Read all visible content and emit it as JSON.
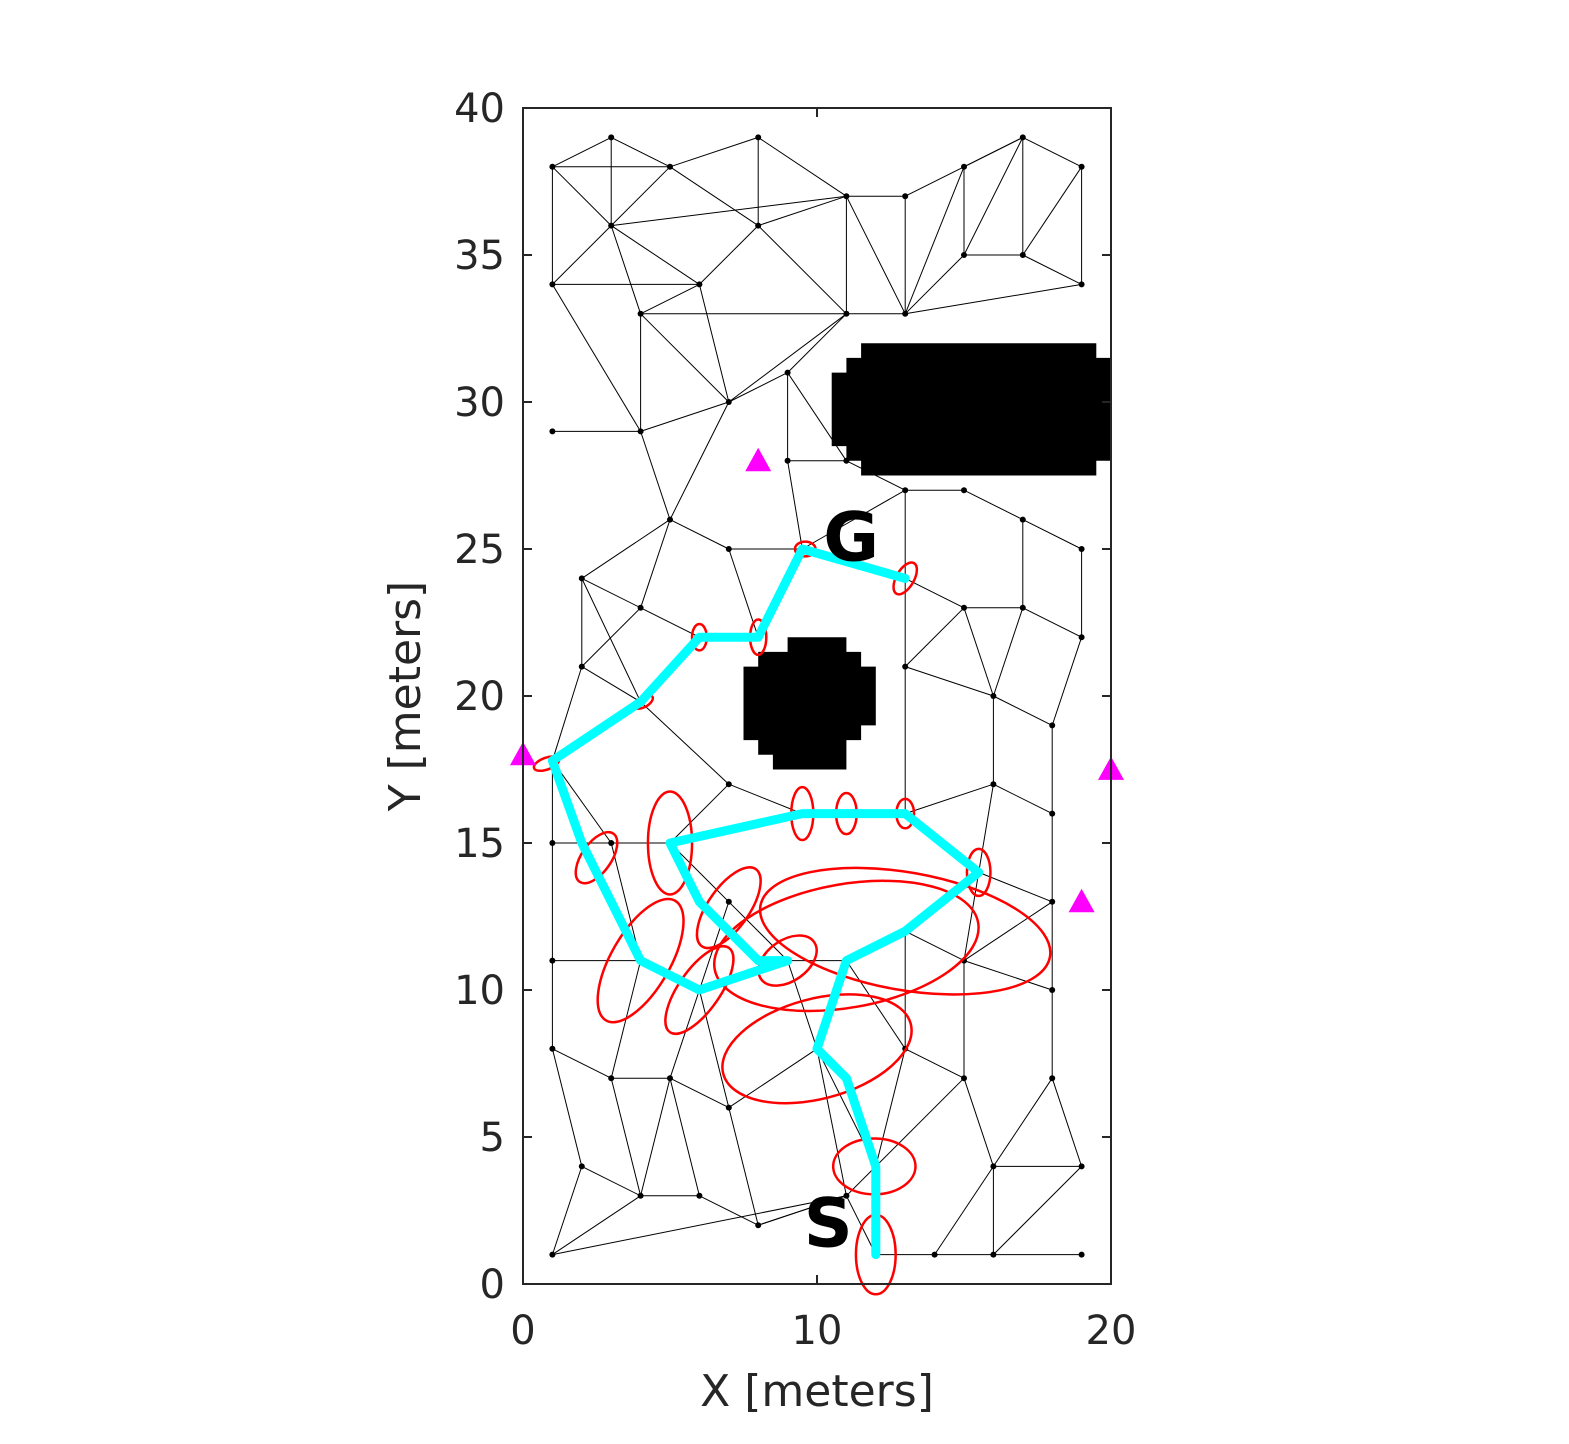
{
  "chart_data": {
    "type": "scatter",
    "title": "",
    "xlabel": "X [meters]",
    "ylabel": "Y [meters]",
    "xlim": [
      0,
      20
    ],
    "ylim": [
      0,
      40
    ],
    "xticks": [
      0,
      10,
      20
    ],
    "yticks": [
      0,
      5,
      10,
      15,
      20,
      25,
      30,
      35,
      40
    ],
    "grid": false,
    "legend": "none",
    "colors": {
      "axis": "#262626",
      "roadmap": "#000000",
      "path": "#00ffff",
      "covariance": "#ff0000",
      "beacon": "#ff00ff",
      "obstacle": "#000000"
    },
    "start_label": "S",
    "goal_label": "G",
    "start": [
      12,
      1
    ],
    "goal": [
      11.3,
      25.5
    ],
    "obstacles": [
      {
        "name": "large-obstacle",
        "outline": [
          [
            11.5,
            32
          ],
          [
            19.5,
            32
          ],
          [
            19.5,
            31.5
          ],
          [
            20,
            31.5
          ],
          [
            20,
            28
          ],
          [
            19.5,
            28
          ],
          [
            19.5,
            27.5
          ],
          [
            11.5,
            27.5
          ],
          [
            11.5,
            28
          ],
          [
            11,
            28
          ],
          [
            11,
            28.5
          ],
          [
            10.5,
            28.5
          ],
          [
            10.5,
            31
          ],
          [
            11,
            31
          ],
          [
            11,
            31.5
          ],
          [
            11.5,
            31.5
          ]
        ]
      },
      {
        "name": "round-obstacle",
        "outline": [
          [
            9,
            22
          ],
          [
            11,
            22
          ],
          [
            11,
            21.5
          ],
          [
            11.5,
            21.5
          ],
          [
            11.5,
            21
          ],
          [
            12,
            21
          ],
          [
            12,
            19
          ],
          [
            11.5,
            19
          ],
          [
            11.5,
            18.5
          ],
          [
            11,
            18.5
          ],
          [
            11,
            17.5
          ],
          [
            8.5,
            17.5
          ],
          [
            8.5,
            18
          ],
          [
            8,
            18
          ],
          [
            8,
            18.5
          ],
          [
            7.5,
            18.5
          ],
          [
            7.5,
            21
          ],
          [
            8,
            21
          ],
          [
            8,
            21.5
          ],
          [
            9,
            21.5
          ]
        ]
      }
    ],
    "beacons": [
      [
        0,
        18
      ],
      [
        8,
        28
      ],
      [
        20,
        17.5
      ],
      [
        19,
        13
      ]
    ],
    "nodes": [
      [
        1,
        38
      ],
      [
        3,
        39
      ],
      [
        5,
        38
      ],
      [
        8,
        39
      ],
      [
        11,
        37
      ],
      [
        13,
        37
      ],
      [
        15,
        38
      ],
      [
        17,
        39
      ],
      [
        19,
        38
      ],
      [
        3,
        36
      ],
      [
        8,
        36
      ],
      [
        1,
        34
      ],
      [
        6,
        34
      ],
      [
        4,
        33
      ],
      [
        11,
        33
      ],
      [
        13,
        33
      ],
      [
        15,
        35
      ],
      [
        17,
        35
      ],
      [
        19,
        34
      ],
      [
        1,
        29
      ],
      [
        4,
        29
      ],
      [
        7,
        30
      ],
      [
        9,
        31
      ],
      [
        9,
        28
      ],
      [
        11,
        28
      ],
      [
        5,
        26
      ],
      [
        7,
        25
      ],
      [
        9.5,
        25
      ],
      [
        13,
        27
      ],
      [
        15,
        27
      ],
      [
        17,
        26
      ],
      [
        19,
        25
      ],
      [
        2,
        24
      ],
      [
        4,
        23
      ],
      [
        6,
        22
      ],
      [
        8,
        22
      ],
      [
        13,
        24
      ],
      [
        15,
        23
      ],
      [
        17,
        23
      ],
      [
        19,
        22
      ],
      [
        2,
        21
      ],
      [
        4,
        19.8
      ],
      [
        13,
        21
      ],
      [
        16,
        20
      ],
      [
        18,
        19
      ],
      [
        1,
        17.8
      ],
      [
        7,
        17
      ],
      [
        9.5,
        16
      ],
      [
        11,
        16
      ],
      [
        13,
        16
      ],
      [
        16,
        17
      ],
      [
        18,
        16
      ],
      [
        1,
        15
      ],
      [
        3,
        15
      ],
      [
        5,
        15
      ],
      [
        15.5,
        14
      ],
      [
        18,
        13
      ],
      [
        7,
        13
      ],
      [
        1,
        11
      ],
      [
        4,
        11
      ],
      [
        6,
        10
      ],
      [
        9,
        11
      ],
      [
        11,
        11
      ],
      [
        13,
        12
      ],
      [
        15,
        11
      ],
      [
        18,
        10
      ],
      [
        1,
        8
      ],
      [
        3,
        7
      ],
      [
        5,
        7
      ],
      [
        7,
        6
      ],
      [
        10,
        8
      ],
      [
        13,
        8
      ],
      [
        15,
        7
      ],
      [
        18,
        7
      ],
      [
        2,
        4
      ],
      [
        4,
        3
      ],
      [
        6,
        3
      ],
      [
        8,
        2
      ],
      [
        11,
        3
      ],
      [
        12,
        4
      ],
      [
        16,
        4
      ],
      [
        19,
        4
      ],
      [
        1,
        1
      ],
      [
        12,
        1
      ],
      [
        14,
        1
      ],
      [
        16,
        1
      ],
      [
        19,
        1
      ]
    ],
    "edges": [
      [
        0,
        1
      ],
      [
        1,
        2
      ],
      [
        2,
        3
      ],
      [
        3,
        4
      ],
      [
        4,
        5
      ],
      [
        5,
        6
      ],
      [
        6,
        7
      ],
      [
        7,
        8
      ],
      [
        0,
        2
      ],
      [
        0,
        9
      ],
      [
        1,
        9
      ],
      [
        2,
        9
      ],
      [
        0,
        11
      ],
      [
        9,
        11
      ],
      [
        9,
        4
      ],
      [
        9,
        12
      ],
      [
        9,
        13
      ],
      [
        2,
        10
      ],
      [
        3,
        10
      ],
      [
        10,
        4
      ],
      [
        10,
        12
      ],
      [
        11,
        12
      ],
      [
        12,
        13
      ],
      [
        12,
        21
      ],
      [
        13,
        20
      ],
      [
        13,
        21
      ],
      [
        13,
        14
      ],
      [
        4,
        14
      ],
      [
        4,
        15
      ],
      [
        5,
        15
      ],
      [
        14,
        15
      ],
      [
        15,
        6
      ],
      [
        15,
        16
      ],
      [
        6,
        16
      ],
      [
        6,
        7
      ],
      [
        7,
        16
      ],
      [
        7,
        17
      ],
      [
        8,
        17
      ],
      [
        8,
        18
      ],
      [
        16,
        17
      ],
      [
        17,
        18
      ],
      [
        15,
        18
      ],
      [
        10,
        14
      ],
      [
        11,
        20
      ],
      [
        19,
        20
      ],
      [
        20,
        21
      ],
      [
        21,
        22
      ],
      [
        21,
        14
      ],
      [
        22,
        14
      ],
      [
        22,
        23
      ],
      [
        22,
        24
      ],
      [
        23,
        24
      ],
      [
        23,
        27
      ],
      [
        20,
        25
      ],
      [
        21,
        25
      ],
      [
        25,
        26
      ],
      [
        26,
        27
      ],
      [
        27,
        28
      ],
      [
        24,
        28
      ],
      [
        28,
        29
      ],
      [
        29,
        30
      ],
      [
        30,
        31
      ],
      [
        28,
        36
      ],
      [
        36,
        37
      ],
      [
        37,
        38
      ],
      [
        38,
        39
      ],
      [
        30,
        38
      ],
      [
        31,
        39
      ],
      [
        25,
        32
      ],
      [
        25,
        33
      ],
      [
        32,
        33
      ],
      [
        32,
        40
      ],
      [
        33,
        34
      ],
      [
        34,
        35
      ],
      [
        26,
        35
      ],
      [
        35,
        27
      ],
      [
        33,
        40
      ],
      [
        40,
        41
      ],
      [
        34,
        41
      ],
      [
        36,
        42
      ],
      [
        37,
        42
      ],
      [
        42,
        43
      ],
      [
        43,
        44
      ],
      [
        39,
        44
      ],
      [
        38,
        43
      ],
      [
        37,
        43
      ],
      [
        43,
        50
      ],
      [
        44,
        51
      ],
      [
        50,
        51
      ],
      [
        49,
        50
      ],
      [
        42,
        49
      ],
      [
        45,
        41
      ],
      [
        45,
        52
      ],
      [
        45,
        53
      ],
      [
        41,
        46
      ],
      [
        46,
        47
      ],
      [
        47,
        48
      ],
      [
        48,
        49
      ],
      [
        45,
        40
      ],
      [
        32,
        41
      ],
      [
        52,
        53
      ],
      [
        53,
        54
      ],
      [
        54,
        46
      ],
      [
        54,
        57
      ],
      [
        52,
        58
      ],
      [
        53,
        59
      ],
      [
        58,
        59
      ],
      [
        59,
        60
      ],
      [
        57,
        60
      ],
      [
        57,
        61
      ],
      [
        61,
        62
      ],
      [
        62,
        63
      ],
      [
        63,
        64
      ],
      [
        64,
        65
      ],
      [
        56,
        64
      ],
      [
        56,
        65
      ],
      [
        51,
        56
      ],
      [
        55,
        56
      ],
      [
        49,
        55
      ],
      [
        55,
        64
      ],
      [
        55,
        63
      ],
      [
        50,
        55
      ],
      [
        58,
        66
      ],
      [
        59,
        67
      ],
      [
        60,
        68
      ],
      [
        60,
        69
      ],
      [
        66,
        67
      ],
      [
        67,
        68
      ],
      [
        68,
        69
      ],
      [
        69,
        70
      ],
      [
        61,
        70
      ],
      [
        62,
        70
      ],
      [
        62,
        71
      ],
      [
        63,
        71
      ],
      [
        71,
        72
      ],
      [
        64,
        72
      ],
      [
        65,
        73
      ],
      [
        66,
        74
      ],
      [
        67,
        75
      ],
      [
        74,
        75
      ],
      [
        68,
        75
      ],
      [
        68,
        76
      ],
      [
        75,
        76
      ],
      [
        69,
        77
      ],
      [
        76,
        77
      ],
      [
        77,
        78
      ],
      [
        70,
        78
      ],
      [
        70,
        79
      ],
      [
        79,
        78
      ],
      [
        71,
        79
      ],
      [
        72,
        79
      ],
      [
        72,
        80
      ],
      [
        73,
        80
      ],
      [
        73,
        81
      ],
      [
        80,
        81
      ],
      [
        74,
        82
      ],
      [
        75,
        82
      ],
      [
        82,
        78
      ],
      [
        78,
        83
      ],
      [
        79,
        83
      ],
      [
        83,
        84
      ],
      [
        84,
        85
      ],
      [
        80,
        85
      ],
      [
        81,
        85
      ],
      [
        85,
        86
      ],
      [
        80,
        84
      ],
      [
        77,
        78
      ]
    ],
    "path": [
      [
        12,
        1
      ],
      [
        12,
        4
      ],
      [
        11,
        7
      ],
      [
        10,
        8
      ],
      [
        11,
        11
      ],
      [
        13,
        12
      ],
      [
        15.5,
        14
      ],
      [
        13,
        16
      ],
      [
        11,
        16
      ],
      [
        9.5,
        16
      ],
      [
        5,
        15
      ],
      [
        6,
        13
      ],
      [
        8,
        11
      ],
      [
        9,
        11
      ],
      [
        6,
        10
      ],
      [
        4,
        11
      ],
      [
        3,
        13
      ],
      [
        2,
        15
      ],
      [
        1,
        17.8
      ],
      [
        4,
        19.8
      ],
      [
        6,
        22
      ],
      [
        8,
        22
      ],
      [
        9.5,
        25
      ],
      [
        13,
        24
      ]
    ],
    "ellipses": [
      [
        12,
        1,
        1.35,
        2.7,
        90
      ],
      [
        11.95,
        4,
        1.9,
        2.8,
        0
      ],
      [
        10,
        8,
        3.4,
        6.6,
        15
      ],
      [
        11,
        11.5,
        4.2,
        9.1,
        10
      ],
      [
        13,
        12,
        4,
        10,
        -10
      ],
      [
        15.5,
        14,
        0.8,
        1.6,
        90
      ],
      [
        13,
        16,
        0.6,
        1.0,
        90
      ],
      [
        11,
        16,
        0.7,
        1.4,
        90
      ],
      [
        9.5,
        16,
        0.75,
        1.8,
        90
      ],
      [
        5,
        15,
        1.5,
        3.5,
        90
      ],
      [
        7,
        12.8,
        1.4,
        3.2,
        55
      ],
      [
        9,
        11,
        1.4,
        2.2,
        35
      ],
      [
        6,
        10,
        1.4,
        3.5,
        55
      ],
      [
        4,
        11,
        2.0,
        4.7,
        60
      ],
      [
        2.5,
        14.5,
        1.0,
        2.0,
        55
      ],
      [
        0.8,
        17.7,
        0.4,
        0.9,
        20
      ],
      [
        4.1,
        19.8,
        0.35,
        0.7,
        30
      ],
      [
        6,
        22,
        0.5,
        0.9,
        90
      ],
      [
        8,
        22,
        0.55,
        1.2,
        90
      ],
      [
        9.6,
        25,
        0.5,
        0.7,
        0
      ],
      [
        13,
        24,
        0.6,
        1.2,
        60
      ]
    ]
  }
}
